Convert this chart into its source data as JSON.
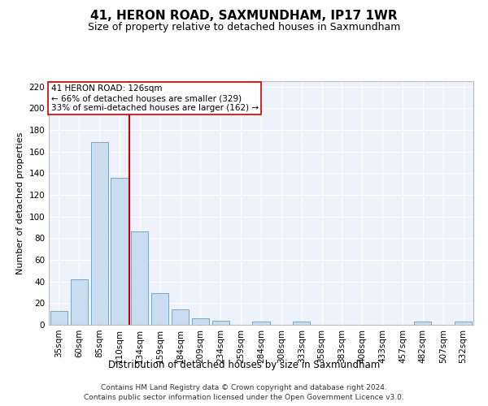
{
  "title": "41, HERON ROAD, SAXMUNDHAM, IP17 1WR",
  "subtitle": "Size of property relative to detached houses in Saxmundham",
  "xlabel": "Distribution of detached houses by size in Saxmundham",
  "ylabel": "Number of detached properties",
  "categories": [
    "35sqm",
    "60sqm",
    "85sqm",
    "110sqm",
    "134sqm",
    "159sqm",
    "184sqm",
    "209sqm",
    "234sqm",
    "259sqm",
    "284sqm",
    "308sqm",
    "333sqm",
    "358sqm",
    "383sqm",
    "408sqm",
    "433sqm",
    "457sqm",
    "482sqm",
    "507sqm",
    "532sqm"
  ],
  "values": [
    13,
    42,
    169,
    136,
    86,
    29,
    14,
    6,
    4,
    0,
    3,
    0,
    3,
    0,
    0,
    0,
    0,
    0,
    3,
    0,
    3
  ],
  "bar_color": "#c9dcf0",
  "bar_edge_color": "#6aaad4",
  "vline_color": "#cc0000",
  "vline_pos": 3.5,
  "ylim": [
    0,
    225
  ],
  "yticks": [
    0,
    20,
    40,
    60,
    80,
    100,
    120,
    140,
    160,
    180,
    200,
    220
  ],
  "annotation_title": "41 HERON ROAD: 126sqm",
  "annotation_line1": "← 66% of detached houses are smaller (329)",
  "annotation_line2": "33% of semi-detached houses are larger (162) →",
  "annotation_box_color": "#ffffff",
  "annotation_box_edge": "#cc0000",
  "footer_line1": "Contains HM Land Registry data © Crown copyright and database right 2024.",
  "footer_line2": "Contains public sector information licensed under the Open Government Licence v3.0.",
  "background_color": "#edf2fb",
  "grid_color": "#ffffff",
  "title_fontsize": 11,
  "subtitle_fontsize": 9,
  "xlabel_fontsize": 8.5,
  "ylabel_fontsize": 8,
  "tick_fontsize": 7.5,
  "annotation_fontsize": 7.5,
  "footer_fontsize": 6.5
}
